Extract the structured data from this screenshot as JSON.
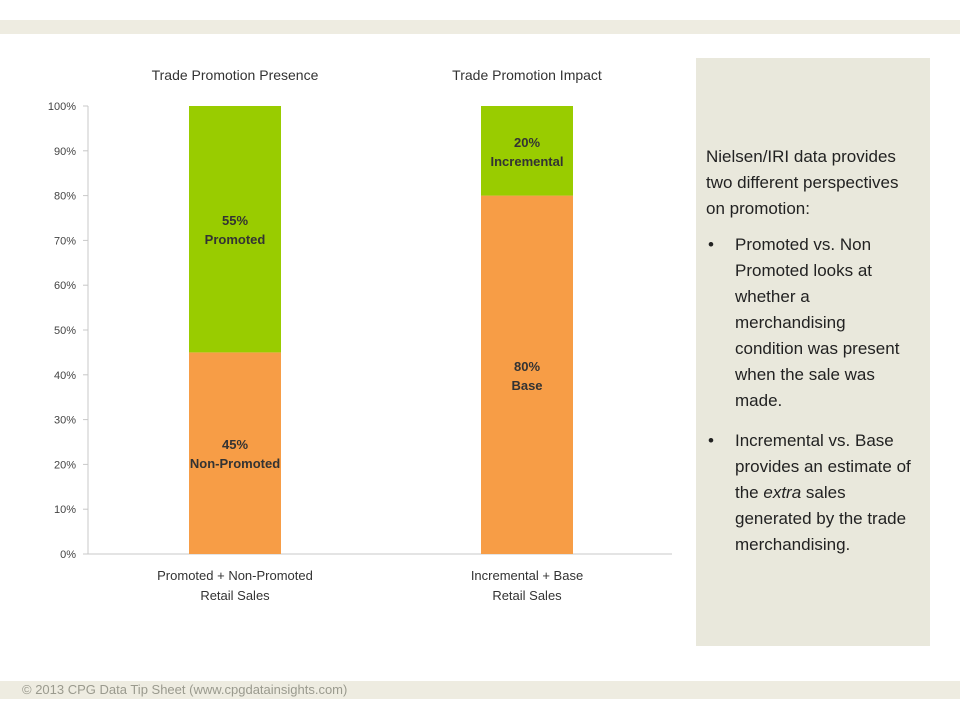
{
  "chart_data": {
    "type": "bar",
    "stacked": true,
    "chart_titles": [
      "Trade Promotion Presence",
      "Trade Promotion Impact"
    ],
    "categories": [
      [
        "Promoted + Non-Promoted",
        "Retail Sales"
      ],
      [
        "Incremental + Base",
        "Retail Sales"
      ]
    ],
    "series": [
      {
        "bars": [
          {
            "pct": "45%",
            "label": "Non-Promoted",
            "value": 45
          },
          {
            "pct": "80%",
            "label": "Base",
            "value": 80
          }
        ]
      },
      {
        "bars": [
          {
            "pct": "55%",
            "label": "Promoted",
            "value": 55
          },
          {
            "pct": "20%",
            "label": "Incremental",
            "value": 20
          }
        ]
      }
    ],
    "ylim": [
      0,
      100
    ],
    "y_ticks": [
      "0%",
      "10%",
      "20%",
      "30%",
      "40%",
      "50%",
      "60%",
      "70%",
      "80%",
      "90%",
      "100%"
    ],
    "grid": false,
    "legend": "none",
    "colors": {
      "lower": "#f79d46",
      "upper": "#99cc00",
      "axis": "#c8c8c8"
    }
  },
  "panel": {
    "intro": "Nielsen/IRI data provides two different perspectives on promotion:",
    "bullet_mark": "•",
    "bullet1": "Promoted vs. Non Promoted looks at whether a merchandising condition was present when the sale was made.",
    "bullet2_before": "Incremental vs. Base provides an estimate of the ",
    "bullet2_em": "extra",
    "bullet2_after": " sales generated by the trade merchandising."
  },
  "footer": "© 2013 CPG Data Tip Sheet (www.cpgdatainsights.com)"
}
